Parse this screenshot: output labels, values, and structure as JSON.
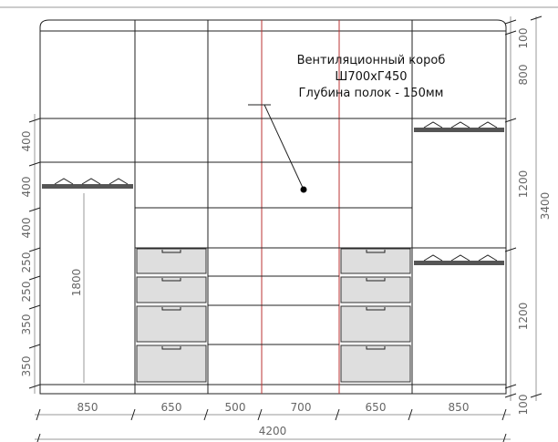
{
  "note": {
    "lines": [
      "Вентиляционный короб",
      "Ш700хГ450",
      "Глубина полок - 150мм"
    ]
  },
  "dimensions": {
    "widths": [
      "850",
      "650",
      "500",
      "700",
      "650",
      "850"
    ],
    "total_width": "4200",
    "left_heights": [
      "400",
      "400",
      "400",
      "250",
      "250",
      "350",
      "350"
    ],
    "inner_height": "1800",
    "right_heights": [
      "100",
      "800",
      "1200",
      "1200",
      "100"
    ],
    "total_height": "3400"
  }
}
